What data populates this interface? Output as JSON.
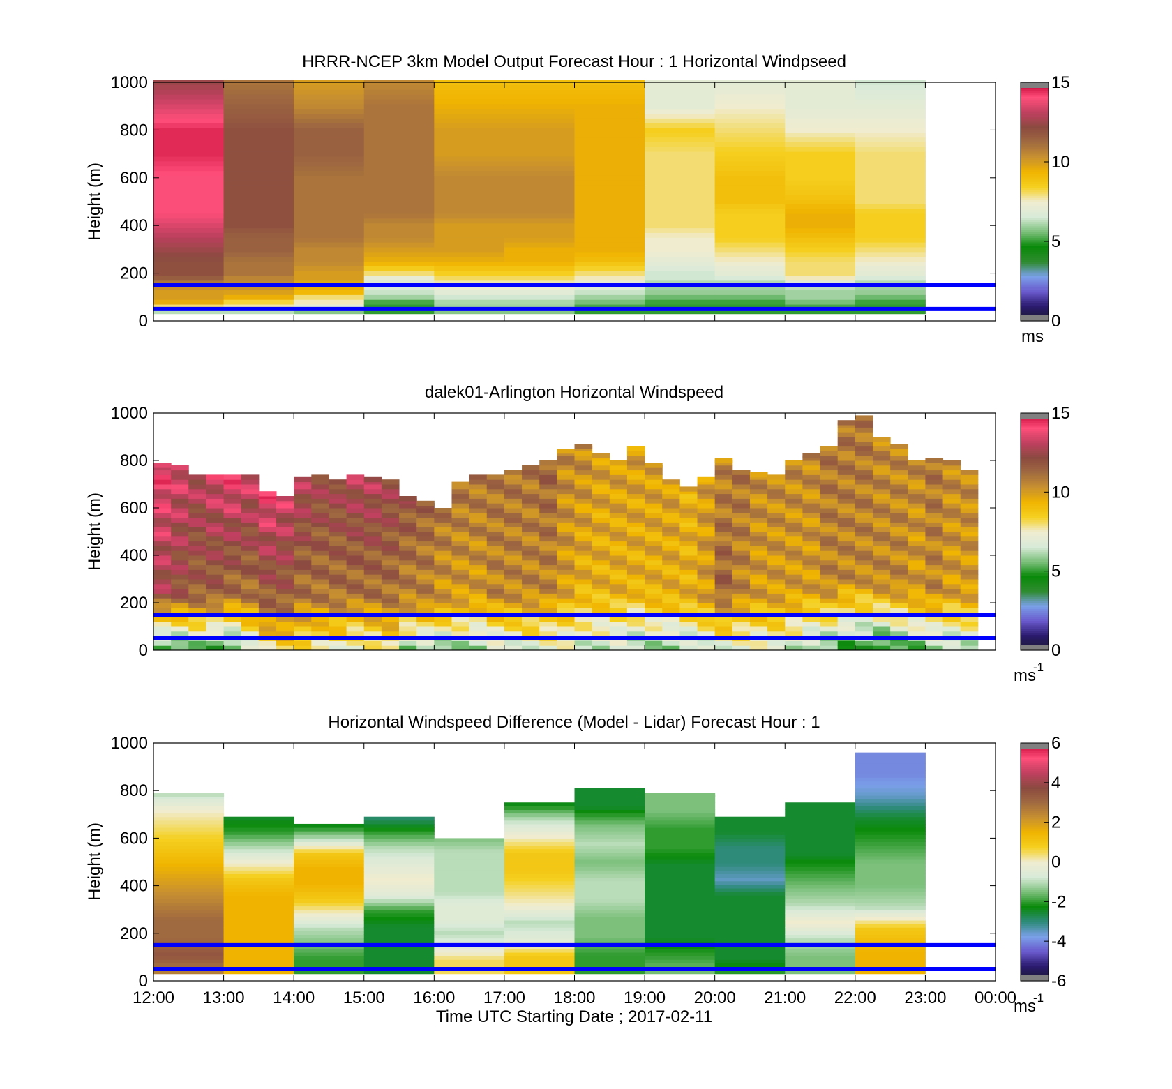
{
  "figure": {
    "xlabel": "Time UTC  Starting Date ; 2017-02-11",
    "time_ticks": [
      "12:00",
      "13:00",
      "14:00",
      "15:00",
      "16:00",
      "17:00",
      "18:00",
      "19:00",
      "20:00",
      "21:00",
      "22:00",
      "23:00",
      "00:00"
    ]
  },
  "colors": {
    "ref_line": "#0000ff",
    "speed_scale": [
      "#1a1a2e",
      "#2b1a6e",
      "#6a5acd",
      "#7aa0e8",
      "#2e8b2e",
      "#0a8a0a",
      "#7cc07c",
      "#d8ead8",
      "#f0ecd0",
      "#f5d020",
      "#f0b400",
      "#c89030",
      "#a06a40",
      "#8b4a40",
      "#c04060",
      "#ff4f7a",
      "#c00030"
    ],
    "diff_scale": [
      "#1a1a2e",
      "#2b1a6e",
      "#6a5acd",
      "#7aa0e8",
      "#2e8b7a",
      "#0a8a0a",
      "#7cc07c",
      "#d8ead8",
      "#f0ecd0",
      "#f5d020",
      "#f0b400",
      "#c89030",
      "#a06a40",
      "#8b4a40",
      "#c04060",
      "#ff4f7a",
      "#c00030"
    ]
  },
  "chart_data": [
    {
      "type": "heatmap",
      "title": "HRRR-NCEP 3km Model Output   Forecast Hour : 1 Horizontal Windpseed",
      "ylabel": "Height (m)",
      "yticks": [
        "0",
        "200",
        "400",
        "600",
        "800",
        "1000"
      ],
      "ylim": [
        0,
        1000
      ],
      "colorbar": {
        "ticks": [
          "0",
          "5",
          "10",
          "15"
        ],
        "range": [
          0,
          15
        ],
        "unit": "ms",
        "unit_sup": ""
      },
      "reference_lines_m": [
        50,
        150
      ],
      "heights_m": [
        30,
        50,
        75,
        100,
        125,
        150,
        175,
        200,
        250,
        300,
        350,
        400,
        450,
        500,
        600,
        700,
        800,
        900,
        1000
      ],
      "columns": [
        {
          "t": 0,
          "values": [
            5.5,
            7.0,
            9.5,
            10.0,
            10.0,
            10.5,
            11.5,
            12.0,
            12.0,
            12.5,
            13.0,
            13.5,
            14.0,
            14.0,
            14.0,
            14.5,
            14.5,
            13.5,
            12.5
          ]
        },
        {
          "t": 1,
          "values": [
            5.0,
            7.5,
            8.0,
            9.5,
            10.0,
            10.5,
            10.5,
            11.0,
            11.0,
            11.5,
            11.5,
            12.0,
            12.0,
            12.0,
            12.0,
            12.0,
            12.0,
            11.5,
            11.0
          ]
        },
        {
          "t": 2,
          "values": [
            5.0,
            6.5,
            7.5,
            8.0,
            9.5,
            9.5,
            10.0,
            10.0,
            10.5,
            10.5,
            11.0,
            11.0,
            11.0,
            11.0,
            11.0,
            11.5,
            11.5,
            10.5,
            10.0
          ]
        },
        {
          "t": 3,
          "values": [
            5.0,
            5.0,
            5.0,
            6.0,
            6.5,
            7.0,
            7.0,
            8.0,
            9.5,
            10.0,
            10.5,
            10.5,
            11.0,
            11.0,
            11.0,
            11.0,
            11.0,
            11.0,
            10.5
          ]
        },
        {
          "t": 4,
          "values": [
            5.5,
            6.0,
            6.0,
            6.5,
            7.0,
            7.5,
            8.0,
            8.5,
            9.5,
            10.0,
            10.0,
            10.0,
            10.5,
            10.5,
            10.5,
            10.0,
            10.0,
            9.5,
            9.0
          ]
        },
        {
          "t": 5,
          "values": [
            5.5,
            6.0,
            6.0,
            6.5,
            7.0,
            7.5,
            8.0,
            8.5,
            9.5,
            9.5,
            10.0,
            10.0,
            10.5,
            10.5,
            10.5,
            10.0,
            10.0,
            9.5,
            9.0
          ]
        },
        {
          "t": 6,
          "values": [
            5.0,
            5.0,
            5.5,
            6.0,
            6.5,
            7.0,
            7.5,
            8.0,
            9.0,
            9.5,
            9.5,
            9.5,
            9.5,
            9.5,
            9.5,
            9.5,
            9.5,
            9.5,
            9.0
          ]
        },
        {
          "t": 7,
          "values": [
            5.0,
            5.0,
            5.0,
            5.5,
            6.0,
            6.0,
            6.5,
            6.5,
            7.0,
            7.5,
            7.5,
            8.0,
            8.0,
            8.0,
            8.0,
            8.0,
            8.5,
            7.0,
            7.0
          ]
        },
        {
          "t": 8,
          "values": [
            5.0,
            5.0,
            5.0,
            5.5,
            6.0,
            6.0,
            6.5,
            7.0,
            7.5,
            8.0,
            8.5,
            8.5,
            8.5,
            9.0,
            9.0,
            8.5,
            8.0,
            7.5,
            7.0
          ]
        },
        {
          "t": 9,
          "values": [
            5.0,
            5.0,
            5.5,
            6.0,
            6.0,
            6.5,
            7.5,
            8.0,
            8.0,
            8.5,
            9.0,
            9.5,
            9.5,
            9.0,
            8.5,
            8.5,
            7.5,
            7.0,
            7.0
          ]
        },
        {
          "t": 10,
          "values": [
            5.0,
            5.0,
            5.0,
            5.5,
            6.0,
            6.0,
            6.5,
            7.0,
            7.5,
            8.0,
            8.5,
            8.5,
            8.5,
            8.0,
            8.0,
            8.0,
            7.5,
            7.0,
            6.5
          ]
        }
      ]
    },
    {
      "type": "heatmap",
      "title": "dalek01-Arlington  Horizontal Windspeed",
      "ylabel": "Height (m)",
      "yticks": [
        "0",
        "200",
        "400",
        "600",
        "800",
        "1000"
      ],
      "ylim": [
        0,
        1000
      ],
      "colorbar": {
        "ticks": [
          "0",
          "5",
          "10",
          "15"
        ],
        "range": [
          0,
          15
        ],
        "unit": "ms",
        "unit_sup": "-1"
      },
      "reference_lines_m": [
        50,
        150
      ],
      "column_width_hours": 0.25,
      "profiles": [
        {
          "t": 0.0,
          "top_m": 790,
          "base": 5.0,
          "mid": 12.5,
          "top": 14.0
        },
        {
          "t": 0.25,
          "top_m": 780,
          "base": 5.0,
          "mid": 12.0,
          "top": 13.5
        },
        {
          "t": 0.5,
          "top_m": 740,
          "base": 5.5,
          "mid": 11.5,
          "top": 13.0
        },
        {
          "t": 0.75,
          "top_m": 740,
          "base": 5.0,
          "mid": 11.5,
          "top": 13.5
        },
        {
          "t": 1.0,
          "top_m": 740,
          "base": 5.0,
          "mid": 11.0,
          "top": 14.0
        },
        {
          "t": 1.25,
          "top_m": 740,
          "base": 6.5,
          "mid": 11.0,
          "top": 13.5
        },
        {
          "t": 1.5,
          "top_m": 670,
          "base": 8.0,
          "mid": 11.5,
          "top": 14.0
        },
        {
          "t": 1.75,
          "top_m": 650,
          "base": 8.5,
          "mid": 11.5,
          "top": 13.5
        },
        {
          "t": 2.0,
          "top_m": 730,
          "base": 8.0,
          "mid": 11.0,
          "top": 13.0
        },
        {
          "t": 2.25,
          "top_m": 740,
          "base": 7.5,
          "mid": 11.0,
          "top": 12.5
        },
        {
          "t": 2.5,
          "top_m": 720,
          "base": 7.5,
          "mid": 11.0,
          "top": 12.5
        },
        {
          "t": 2.75,
          "top_m": 740,
          "base": 7.0,
          "mid": 11.0,
          "top": 13.0
        },
        {
          "t": 3.0,
          "top_m": 730,
          "base": 7.5,
          "mid": 11.0,
          "top": 13.0
        },
        {
          "t": 3.25,
          "top_m": 720,
          "base": 8.0,
          "mid": 11.0,
          "top": 12.5
        },
        {
          "t": 3.5,
          "top_m": 650,
          "base": 6.0,
          "mid": 10.5,
          "top": 12.0
        },
        {
          "t": 3.75,
          "top_m": 630,
          "base": 6.0,
          "mid": 10.5,
          "top": 11.5
        },
        {
          "t": 4.0,
          "top_m": 600,
          "base": 5.5,
          "mid": 10.0,
          "top": 11.0
        },
        {
          "t": 4.25,
          "top_m": 710,
          "base": 6.0,
          "mid": 10.0,
          "top": 11.0
        },
        {
          "t": 4.5,
          "top_m": 740,
          "base": 6.0,
          "mid": 10.0,
          "top": 11.0
        },
        {
          "t": 4.75,
          "top_m": 740,
          "base": 6.5,
          "mid": 10.5,
          "top": 11.0
        },
        {
          "t": 5.0,
          "top_m": 760,
          "base": 6.5,
          "mid": 10.5,
          "top": 11.0
        },
        {
          "t": 5.25,
          "top_m": 780,
          "base": 7.0,
          "mid": 10.5,
          "top": 11.0
        },
        {
          "t": 5.5,
          "top_m": 800,
          "base": 7.0,
          "mid": 10.5,
          "top": 11.5
        },
        {
          "t": 5.75,
          "top_m": 850,
          "base": 7.0,
          "mid": 10.0,
          "top": 10.5
        },
        {
          "t": 6.0,
          "top_m": 870,
          "base": 6.5,
          "mid": 9.5,
          "top": 10.5
        },
        {
          "t": 6.25,
          "top_m": 830,
          "base": 6.5,
          "mid": 9.5,
          "top": 10.0
        },
        {
          "t": 6.5,
          "top_m": 800,
          "base": 6.5,
          "mid": 9.5,
          "top": 10.0
        },
        {
          "t": 6.75,
          "top_m": 860,
          "base": 6.0,
          "mid": 9.5,
          "top": 10.0
        },
        {
          "t": 7.0,
          "top_m": 790,
          "base": 6.0,
          "mid": 9.5,
          "top": 10.0
        },
        {
          "t": 7.25,
          "top_m": 720,
          "base": 6.0,
          "mid": 9.5,
          "top": 10.0
        },
        {
          "t": 7.5,
          "top_m": 690,
          "base": 6.0,
          "mid": 9.5,
          "top": 9.5
        },
        {
          "t": 7.75,
          "top_m": 730,
          "base": 6.5,
          "mid": 10.0,
          "top": 10.0
        },
        {
          "t": 8.0,
          "top_m": 810,
          "base": 7.0,
          "mid": 11.5,
          "top": 10.5
        },
        {
          "t": 8.25,
          "top_m": 760,
          "base": 7.0,
          "mid": 10.5,
          "top": 11.0
        },
        {
          "t": 8.5,
          "top_m": 750,
          "base": 7.0,
          "mid": 10.0,
          "top": 10.5
        },
        {
          "t": 8.75,
          "top_m": 740,
          "base": 7.0,
          "mid": 10.0,
          "top": 10.5
        },
        {
          "t": 9.0,
          "top_m": 800,
          "base": 6.5,
          "mid": 10.0,
          "top": 10.5
        },
        {
          "t": 9.25,
          "top_m": 830,
          "base": 6.0,
          "mid": 10.0,
          "top": 10.5
        },
        {
          "t": 9.5,
          "top_m": 860,
          "base": 5.5,
          "mid": 10.5,
          "top": 11.0
        },
        {
          "t": 9.75,
          "top_m": 970,
          "base": 5.0,
          "mid": 10.5,
          "top": 11.0
        },
        {
          "t": 10.0,
          "top_m": 990,
          "base": 5.0,
          "mid": 10.5,
          "top": 11.0
        },
        {
          "t": 10.25,
          "top_m": 900,
          "base": 4.5,
          "mid": 10.5,
          "top": 10.5
        },
        {
          "t": 10.5,
          "top_m": 870,
          "base": 5.0,
          "mid": 10.5,
          "top": 10.5
        },
        {
          "t": 10.75,
          "top_m": 800,
          "base": 5.5,
          "mid": 10.0,
          "top": 10.5
        },
        {
          "t": 11.0,
          "top_m": 810,
          "base": 6.0,
          "mid": 10.5,
          "top": 11.0
        },
        {
          "t": 11.25,
          "top_m": 800,
          "base": 6.0,
          "mid": 10.0,
          "top": 10.5
        },
        {
          "t": 11.5,
          "top_m": 760,
          "base": 6.0,
          "mid": 10.0,
          "top": 10.5
        }
      ]
    },
    {
      "type": "heatmap",
      "title": "Horizontal Windspeed Difference (Model - Lidar) Forecast Hour : 1",
      "ylabel": "Height (m)",
      "yticks": [
        "0",
        "200",
        "400",
        "600",
        "800",
        "1000"
      ],
      "ylim": [
        0,
        1000
      ],
      "xlabel": "Time UTC  Starting Date ; 2017-02-11",
      "colorbar": {
        "ticks": [
          "-6",
          "-4",
          "-2",
          "0",
          "2",
          "4",
          "6"
        ],
        "range": [
          -6,
          6
        ],
        "unit": "ms",
        "unit_sup": "-1"
      },
      "reference_lines_m": [
        50,
        150
      ],
      "columns": [
        {
          "t": 0,
          "top_m": 790,
          "values": [
            2.5,
            3.5,
            3.0,
            3.0,
            2.5,
            2.0,
            1.5,
            1.0,
            0.5,
            0.0,
            -1.0
          ]
        },
        {
          "t": 1,
          "top_m": 690,
          "values": [
            1.5,
            1.5,
            1.5,
            1.5,
            1.5,
            1.5,
            1.0,
            0.0,
            -1.0,
            -2.0,
            -2.5
          ]
        },
        {
          "t": 2,
          "top_m": 660,
          "values": [
            -2.0,
            -2.0,
            -1.5,
            -1.0,
            0.0,
            1.0,
            1.5,
            1.5,
            1.0,
            -1.0,
            -2.5
          ]
        },
        {
          "t": 3,
          "top_m": 690,
          "values": [
            -2.5,
            -2.5,
            -2.5,
            -2.5,
            -2.0,
            -0.5,
            0.0,
            -0.5,
            -1.0,
            -2.0,
            -3.0
          ]
        },
        {
          "t": 4,
          "top_m": 600,
          "values": [
            0.5,
            0.5,
            -0.5,
            -1.0,
            -0.5,
            -0.5,
            -1.0,
            -1.0,
            -1.0,
            -1.0,
            -1.5
          ]
        },
        {
          "t": 5,
          "top_m": 750,
          "values": [
            1.0,
            1.0,
            -0.5,
            -1.0,
            0.0,
            0.5,
            1.0,
            1.0,
            0.0,
            -1.0,
            -2.5
          ]
        },
        {
          "t": 6,
          "top_m": 810,
          "values": [
            -2.0,
            -2.0,
            -1.5,
            -1.5,
            -1.0,
            -1.0,
            -1.5,
            -1.0,
            -1.5,
            -2.5,
            -2.5
          ]
        },
        {
          "t": 7,
          "top_m": 790,
          "values": [
            -1.5,
            -2.0,
            -2.5,
            -2.5,
            -2.5,
            -2.5,
            -2.5,
            -2.0,
            -2.0,
            -1.5,
            -1.5
          ]
        },
        {
          "t": 8,
          "top_m": 690,
          "values": [
            -2.0,
            -2.5,
            -2.5,
            -2.5,
            -2.5,
            -2.5,
            -3.5,
            -3.0,
            -3.0,
            -2.5,
            -2.5
          ]
        },
        {
          "t": 9,
          "top_m": 750,
          "values": [
            -1.5,
            -1.5,
            -1.0,
            0.0,
            -1.0,
            -1.5,
            -2.0,
            -2.5,
            -2.5,
            -2.5,
            -2.5
          ]
        },
        {
          "t": 10,
          "top_m": 960,
          "values": [
            1.5,
            1.5,
            1.0,
            -1.0,
            -1.5,
            -1.5,
            -2.0,
            -2.5,
            -3.5,
            -4.0,
            -4.0
          ]
        }
      ]
    }
  ]
}
